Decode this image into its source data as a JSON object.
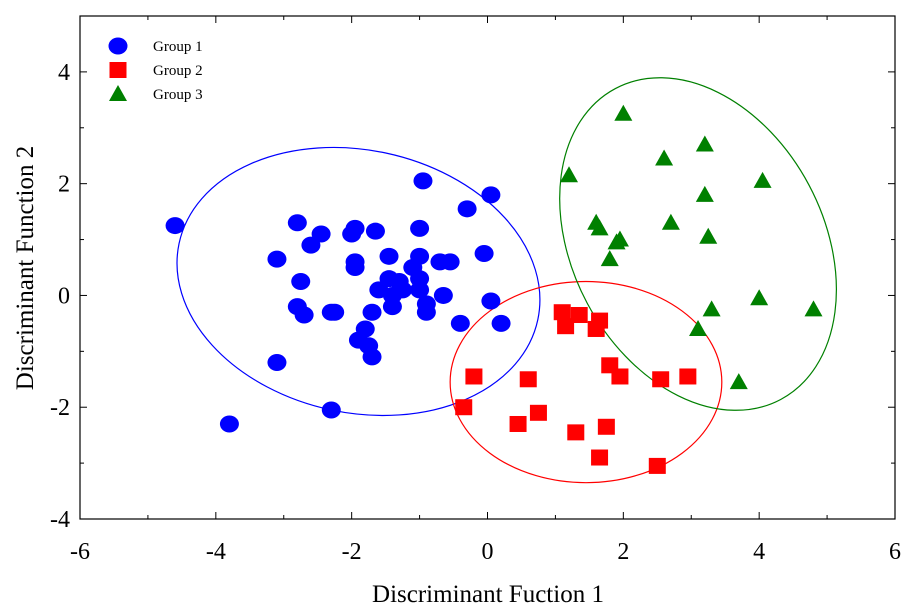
{
  "chart_data": {
    "type": "scatter",
    "xlabel": "Discriminant Fuction 1",
    "ylabel": "Discriminant Function 2",
    "xlim": [
      -6,
      6
    ],
    "ylim": [
      -4,
      5
    ],
    "xticks": [
      "-6",
      "-4",
      "-2",
      "0",
      "2",
      "4",
      "6"
    ],
    "yticks": [
      "-4",
      "-2",
      "0",
      "2",
      "4"
    ],
    "legend_position": "top-left",
    "series": [
      {
        "name": "Group 1",
        "marker": "circle",
        "color": "#0000ff",
        "points": [
          [
            -4.6,
            1.25
          ],
          [
            -3.8,
            -2.3
          ],
          [
            -3.1,
            0.65
          ],
          [
            -3.1,
            -1.2
          ],
          [
            -2.8,
            1.3
          ],
          [
            -2.75,
            0.25
          ],
          [
            -2.8,
            -0.2
          ],
          [
            -2.7,
            -0.35
          ],
          [
            -2.6,
            0.9
          ],
          [
            -2.45,
            1.1
          ],
          [
            -2.3,
            -2.05
          ],
          [
            -2.3,
            -0.3
          ],
          [
            -2.25,
            -0.3
          ],
          [
            -2.0,
            1.1
          ],
          [
            -1.95,
            1.2
          ],
          [
            -1.95,
            0.6
          ],
          [
            -1.95,
            0.5
          ],
          [
            -1.9,
            -0.8
          ],
          [
            -1.8,
            -0.6
          ],
          [
            -1.75,
            -0.9
          ],
          [
            -1.7,
            -0.3
          ],
          [
            -1.7,
            -1.1
          ],
          [
            -1.65,
            1.15
          ],
          [
            -1.6,
            0.1
          ],
          [
            -1.45,
            0.7
          ],
          [
            -1.45,
            0.3
          ],
          [
            -1.4,
            0.0
          ],
          [
            -1.4,
            -0.2
          ],
          [
            -1.3,
            0.25
          ],
          [
            -1.25,
            0.1
          ],
          [
            -1.1,
            0.5
          ],
          [
            -1.0,
            0.3
          ],
          [
            -1.0,
            1.2
          ],
          [
            -1.0,
            0.7
          ],
          [
            -1.0,
            0.1
          ],
          [
            -0.95,
            2.05
          ],
          [
            -0.9,
            -0.15
          ],
          [
            -0.9,
            -0.3
          ],
          [
            -0.7,
            0.6
          ],
          [
            -0.65,
            0.0
          ],
          [
            -0.55,
            0.6
          ],
          [
            -0.4,
            -0.5
          ],
          [
            -0.3,
            1.55
          ],
          [
            -0.05,
            0.75
          ],
          [
            0.05,
            1.8
          ],
          [
            0.05,
            -0.1
          ],
          [
            0.2,
            -0.5
          ]
        ],
        "ellipse": {
          "cx": -1.9,
          "cy": 0.25,
          "rx": 2.7,
          "ry": 2.35,
          "angle": 12
        }
      },
      {
        "name": "Group 2",
        "marker": "square",
        "color": "#ff0000",
        "points": [
          [
            -0.35,
            -2.0
          ],
          [
            -0.2,
            -1.45
          ],
          [
            0.45,
            -2.3
          ],
          [
            0.6,
            -1.5
          ],
          [
            0.75,
            -2.1
          ],
          [
            1.1,
            -0.3
          ],
          [
            1.15,
            -0.55
          ],
          [
            1.3,
            -2.45
          ],
          [
            1.35,
            -0.35
          ],
          [
            1.6,
            -0.6
          ],
          [
            1.65,
            -0.45
          ],
          [
            1.65,
            -2.9
          ],
          [
            1.75,
            -2.35
          ],
          [
            1.8,
            -1.25
          ],
          [
            1.95,
            -1.45
          ],
          [
            2.5,
            -3.05
          ],
          [
            2.55,
            -1.5
          ],
          [
            2.95,
            -1.45
          ]
        ],
        "ellipse": {
          "cx": 1.45,
          "cy": -1.55,
          "rx": 2.0,
          "ry": 1.8,
          "angle": 0
        }
      },
      {
        "name": "Group 3",
        "marker": "triangle",
        "color": "#008000",
        "points": [
          [
            1.2,
            2.15
          ],
          [
            1.6,
            1.3
          ],
          [
            1.65,
            1.2
          ],
          [
            1.8,
            0.65
          ],
          [
            1.9,
            0.95
          ],
          [
            1.95,
            1.0
          ],
          [
            2.0,
            3.25
          ],
          [
            2.6,
            2.45
          ],
          [
            2.7,
            1.3
          ],
          [
            3.1,
            -0.6
          ],
          [
            3.2,
            2.7
          ],
          [
            3.2,
            1.8
          ],
          [
            3.25,
            1.05
          ],
          [
            3.3,
            -0.25
          ],
          [
            3.7,
            -1.55
          ],
          [
            4.0,
            -0.05
          ],
          [
            4.05,
            2.05
          ],
          [
            4.8,
            -0.25
          ]
        ],
        "ellipse": {
          "cx": 3.1,
          "cy": 0.92,
          "rx": 1.85,
          "ry": 3.15,
          "angle": -28
        }
      }
    ]
  }
}
